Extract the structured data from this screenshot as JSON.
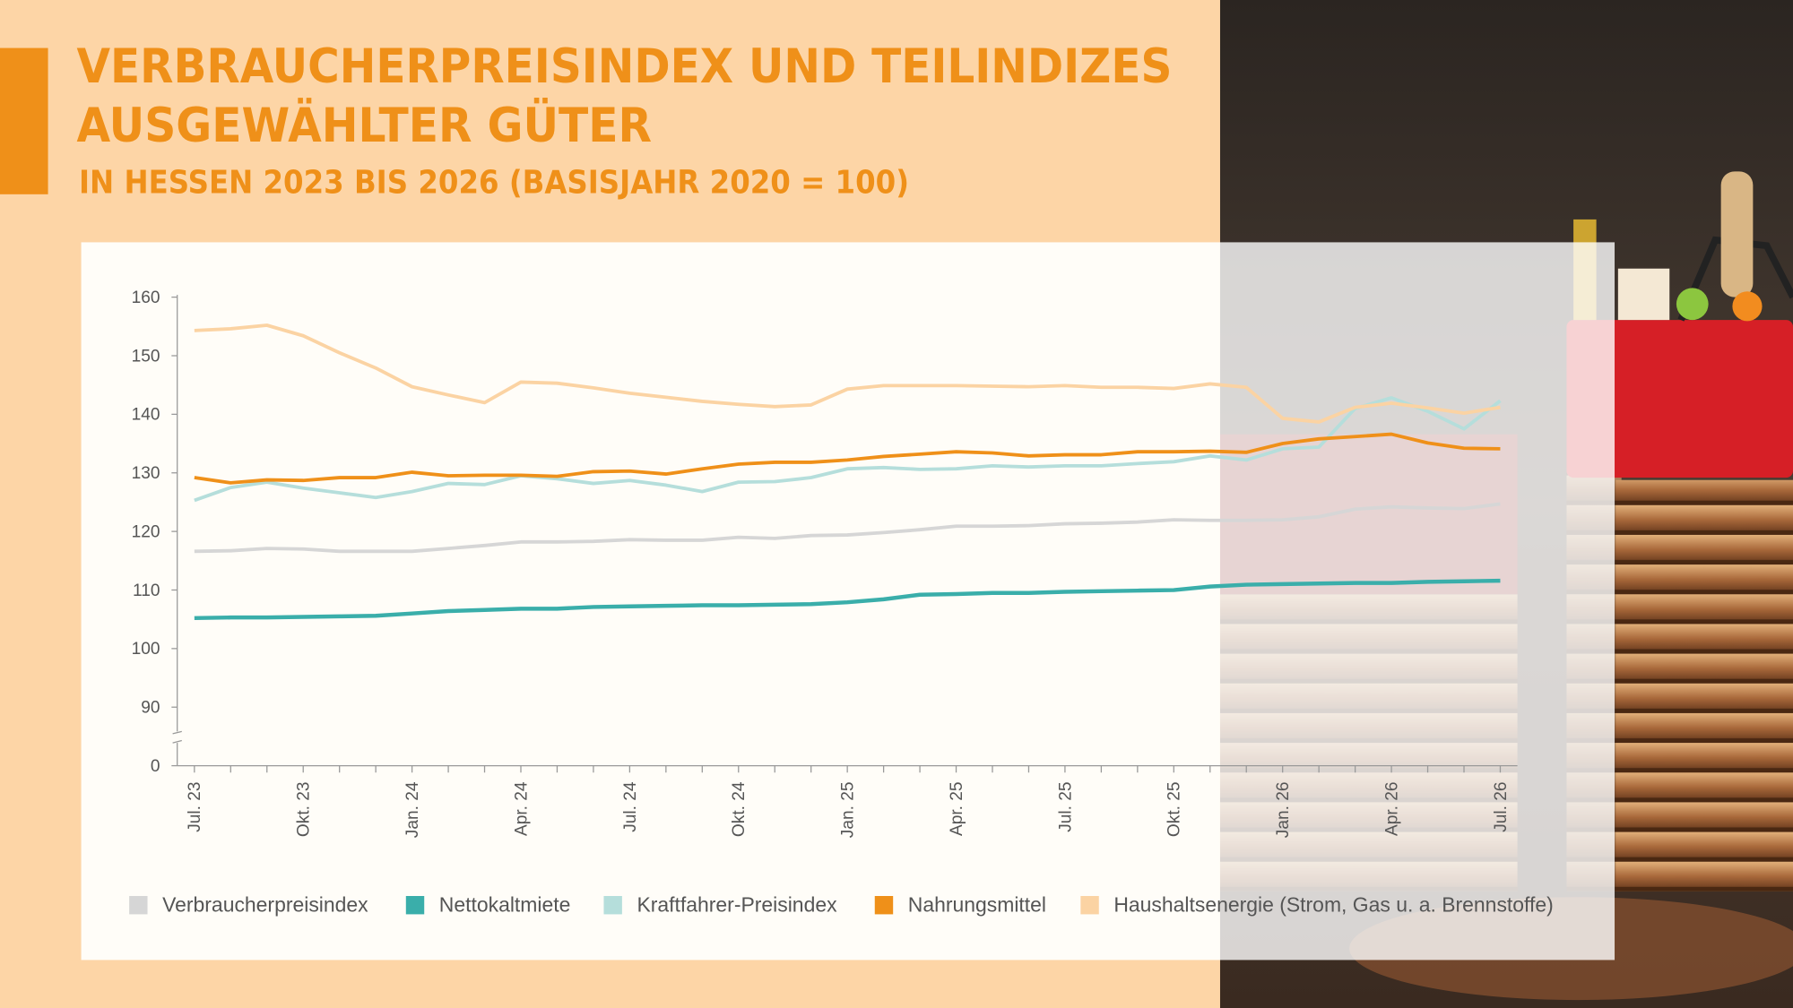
{
  "chart_data": {
    "type": "line",
    "title": [
      "VERBRAUCHERPREISINDEX UND TEILINDIZES",
      "AUSGEWÄHLTER GÜTER"
    ],
    "subtitle": "IN HESSEN 2023 BIS 2026 (BASISJAHR 2020 = 100)",
    "categories": [
      "Jul. 23",
      null,
      null,
      "Okt. 23",
      null,
      null,
      "Jan. 24",
      null,
      null,
      "Apr. 24",
      null,
      null,
      "Jul. 24",
      null,
      null,
      "Okt. 24",
      null,
      null,
      "Jan. 25",
      null,
      null,
      "Apr. 25",
      null,
      null,
      "Jul. 25",
      null,
      null,
      "Okt. 25",
      null,
      null,
      "Jan. 26",
      null,
      null,
      "Apr. 26",
      null,
      null,
      "Jul. 26"
    ],
    "ylim": [
      0,
      160
    ],
    "axis_break": [
      0,
      90
    ],
    "yticks": [
      0,
      90,
      100,
      110,
      120,
      130,
      140,
      150,
      160
    ],
    "grid": false,
    "legend": "bottom",
    "series": [
      {
        "name": "Verbraucherpreisindex",
        "color": "#d6d6d6",
        "values": [
          116.6,
          116.7,
          117.1,
          117.0,
          116.6,
          116.6,
          116.6,
          117.1,
          117.6,
          118.2,
          118.2,
          118.3,
          118.6,
          118.5,
          118.5,
          119.0,
          118.8,
          119.3,
          119.4,
          119.8,
          120.3,
          120.9,
          120.9,
          121.0,
          121.3,
          121.4,
          121.6,
          122.0,
          121.9,
          121.9,
          122.0,
          122.5,
          123.8,
          124.2,
          124.0,
          123.9,
          124.7
        ]
      },
      {
        "name": "Nettokaltmiete",
        "color": "#3aaeaa",
        "values": [
          105.2,
          105.3,
          105.3,
          105.4,
          105.5,
          105.6,
          106.0,
          106.4,
          106.6,
          106.8,
          106.8,
          107.1,
          107.2,
          107.3,
          107.4,
          107.4,
          107.5,
          107.6,
          107.9,
          108.4,
          109.2,
          109.3,
          109.5,
          109.5,
          109.7,
          109.8,
          109.9,
          110.0,
          110.6,
          110.9,
          111.0,
          111.1,
          111.2,
          111.2,
          111.4,
          111.5,
          111.6
        ]
      },
      {
        "name": "Kraftfahrer-Preisindex",
        "color": "#b5dedb",
        "values": [
          125.3,
          127.5,
          128.4,
          127.4,
          126.6,
          125.8,
          126.8,
          128.2,
          128.0,
          129.5,
          129.0,
          128.2,
          128.7,
          127.9,
          126.8,
          128.4,
          128.5,
          129.2,
          130.7,
          130.9,
          130.6,
          130.7,
          131.2,
          131.0,
          131.2,
          131.2,
          131.6,
          131.9,
          132.9,
          132.2,
          134.1,
          134.4,
          141.0,
          142.8,
          140.5,
          137.5,
          142.3
        ]
      },
      {
        "name": "Nahrungsmittel",
        "color": "#ef9019",
        "values": [
          129.2,
          128.3,
          128.8,
          128.7,
          129.2,
          129.2,
          130.1,
          129.5,
          129.6,
          129.6,
          129.4,
          130.2,
          130.3,
          129.8,
          130.7,
          131.5,
          131.8,
          131.8,
          132.2,
          132.8,
          133.2,
          133.6,
          133.4,
          132.9,
          133.1,
          133.1,
          133.6,
          133.6,
          133.7,
          133.5,
          135.0,
          135.8,
          136.2,
          136.6,
          135.1,
          134.2,
          134.1
        ]
      },
      {
        "name": "Haushaltsenergie (Strom, Gas u. a. Brennstoffe)",
        "color": "#fbd3a3",
        "values": [
          154.3,
          154.6,
          155.2,
          153.4,
          150.5,
          147.9,
          144.7,
          143.3,
          142.0,
          145.5,
          145.3,
          144.5,
          143.6,
          142.9,
          142.2,
          141.7,
          141.3,
          141.6,
          144.3,
          144.9,
          144.9,
          144.9,
          144.8,
          144.7,
          144.9,
          144.6,
          144.6,
          144.4,
          145.2,
          144.6,
          139.3,
          138.7,
          141.2,
          141.9,
          141.1,
          140.2,
          141.2
        ]
      }
    ]
  }
}
